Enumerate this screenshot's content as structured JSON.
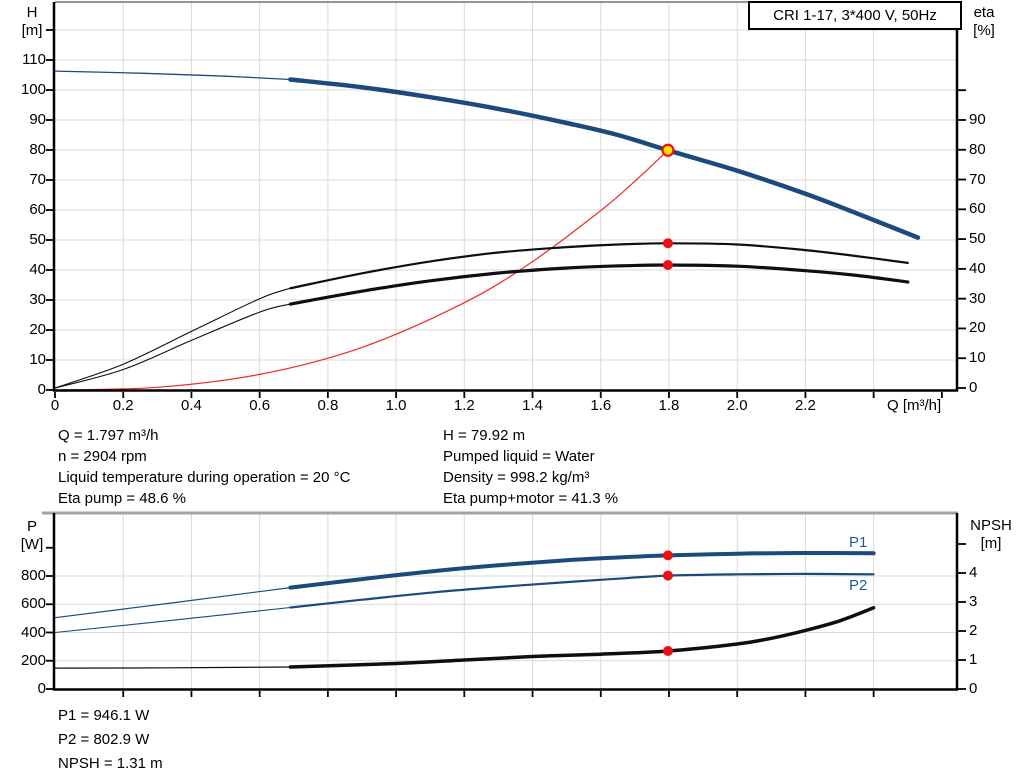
{
  "title_box": "CRI 1-17, 3*400 V, 50Hz",
  "colors": {
    "blue": "#1c4a7c",
    "black": "#0f0f0f",
    "red": "#ee2c22",
    "dot_red": "#ee1111",
    "duty_yellow": "#ffdf00",
    "grid": "#d9d9d9",
    "frame_gray": "#a3a3a3",
    "label_blue": "#1d5a9e"
  },
  "stats_top": {
    "left": [
      "Q = 1.797 m³/h",
      "n = 2904 rpm",
      "Liquid temperature during operation = 20 °C",
      "Eta pump = 48.6 %"
    ],
    "right": [
      "H = 79.92 m",
      "Pumped liquid = Water",
      "Density = 998.2 kg/m³",
      "Eta pump+motor = 41.3 %"
    ]
  },
  "stats_bottom": [
    "P1 = 946.1 W",
    "P2 = 802.9 W",
    "NPSH = 1.31 m"
  ],
  "chart_data": [
    {
      "type": "line",
      "name": "qh-eta-chart",
      "title": "CRI 1-17, 3*400 V, 50Hz",
      "x_axis": {
        "label": "Q [m³/h]",
        "tick_values": [
          0,
          0.2,
          0.4,
          0.6,
          0.8,
          1.0,
          1.2,
          1.4,
          1.6,
          1.8,
          2.0,
          2.2
        ],
        "tick_labels": [
          "0",
          "0.2",
          "0.4",
          "0.6",
          "0.8",
          "1.0",
          "1.2",
          "1.4",
          "1.6",
          "1.8",
          "2.0",
          "2.2"
        ],
        "unlabeled_ticks": [
          2.4,
          2.6
        ],
        "range": [
          0,
          2.645
        ]
      },
      "left_axis": {
        "title": "H",
        "unit": "[m]",
        "ticks": [
          0,
          10,
          20,
          30,
          40,
          50,
          60,
          70,
          80,
          90,
          100,
          110
        ],
        "unlabeled_ticks": [
          120
        ]
      },
      "right_axis": {
        "title": "eta",
        "unit": "[%]",
        "ticks": [
          0,
          10,
          20,
          30,
          40,
          50,
          60,
          70,
          80,
          90
        ],
        "unlabeled_ticks": [
          100
        ]
      },
      "series": [
        {
          "name": "pump-curve-preview",
          "axis": "H",
          "color": "blue",
          "width": 1.3,
          "points": [
            [
              0,
              106.3
            ],
            [
              0.25,
              105.6
            ],
            [
              0.5,
              104.6
            ],
            [
              0.69,
              103.5
            ]
          ]
        },
        {
          "name": "pump-curve",
          "axis": "H",
          "color": "blue",
          "width": 4.5,
          "points": [
            [
              0.69,
              103.5
            ],
            [
              0.9,
              100.9
            ],
            [
              1.1,
              97.6
            ],
            [
              1.3,
              93.7
            ],
            [
              1.5,
              89.0
            ],
            [
              1.65,
              85.0
            ],
            [
              1.797,
              79.9
            ],
            [
              2.0,
              73.1
            ],
            [
              2.2,
              65.4
            ],
            [
              2.35,
              58.9
            ],
            [
              2.53,
              50.8
            ]
          ]
        },
        {
          "name": "system-curve",
          "axis": "H",
          "color": "red",
          "width": 1.2,
          "points": [
            [
              0,
              0
            ],
            [
              0.3,
              0.9
            ],
            [
              0.6,
              5.2
            ],
            [
              0.9,
              14.2
            ],
            [
              1.2,
              29.1
            ],
            [
              1.4,
              42.8
            ],
            [
              1.6,
              59.8
            ],
            [
              1.7,
              69.6
            ],
            [
              1.797,
              79.9
            ]
          ]
        },
        {
          "name": "eta-pump-curve-preview",
          "axis": "eta",
          "color": "black",
          "width": 1.1,
          "points": [
            [
              0,
              0
            ],
            [
              0.2,
              8
            ],
            [
              0.4,
              19
            ],
            [
              0.6,
              30
            ],
            [
              0.69,
              33.5
            ]
          ]
        },
        {
          "name": "eta-pump-curve",
          "axis": "eta",
          "color": "black",
          "width": 2.2,
          "points": [
            [
              0.69,
              33.5
            ],
            [
              0.9,
              38.5
            ],
            [
              1.1,
              42.5
            ],
            [
              1.3,
              45.5
            ],
            [
              1.5,
              47.3
            ],
            [
              1.65,
              48.2
            ],
            [
              1.797,
              48.6
            ],
            [
              2.0,
              48.2
            ],
            [
              2.2,
              46.3
            ],
            [
              2.35,
              44.3
            ],
            [
              2.5,
              42.0
            ]
          ]
        },
        {
          "name": "eta-pump-motor-curve-preview",
          "axis": "eta",
          "color": "black",
          "width": 1.1,
          "points": [
            [
              0,
              0
            ],
            [
              0.2,
              6.2
            ],
            [
              0.4,
              16
            ],
            [
              0.6,
              25.5
            ],
            [
              0.69,
              28.2
            ]
          ]
        },
        {
          "name": "eta-pump-motor-curve",
          "axis": "eta",
          "color": "black",
          "width": 3.2,
          "points": [
            [
              0.69,
              28.2
            ],
            [
              0.9,
              32.5
            ],
            [
              1.1,
              36.0
            ],
            [
              1.3,
              38.6
            ],
            [
              1.5,
              40.3
            ],
            [
              1.65,
              41.0
            ],
            [
              1.797,
              41.3
            ],
            [
              2.0,
              40.9
            ],
            [
              2.2,
              39.4
            ],
            [
              2.35,
              37.8
            ],
            [
              2.5,
              35.6
            ]
          ]
        }
      ],
      "markers": [
        {
          "name": "duty-point",
          "style": "duty",
          "axis": "H",
          "q": 1.797,
          "v": 79.92
        },
        {
          "name": "eta-pump-point",
          "style": "dot",
          "axis": "eta",
          "q": 1.797,
          "v": 48.6
        },
        {
          "name": "eta-pump-motor-point",
          "style": "dot",
          "axis": "eta",
          "q": 1.797,
          "v": 41.3
        }
      ]
    },
    {
      "type": "line",
      "name": "power-npsh-chart",
      "x_axis": {
        "label": "",
        "tick_values": [],
        "tick_labels": [],
        "unlabeled_ticks": [
          0.2,
          0.4,
          0.6,
          0.8,
          1.0,
          1.2,
          1.4,
          1.6,
          1.8,
          2.0,
          2.2,
          2.4
        ],
        "range": [
          0,
          2.645
        ]
      },
      "left_axis": {
        "title": "P",
        "unit": "[W]",
        "ticks": [
          0,
          200,
          400,
          600,
          800
        ],
        "unlabeled_ticks": [
          1000
        ]
      },
      "right_axis": {
        "title": "NPSH",
        "unit": "[m]",
        "ticks": [
          0,
          1,
          2,
          3,
          4
        ],
        "unlabeled_ticks": [
          5
        ]
      },
      "series_labels": [
        "P1",
        "P2"
      ],
      "series": [
        {
          "name": "p1-curve-preview",
          "axis": "P",
          "color": "blue",
          "width": 1.2,
          "points": [
            [
              0,
              505
            ],
            [
              0.35,
              612
            ],
            [
              0.69,
              718
            ]
          ]
        },
        {
          "name": "p1-curve",
          "axis": "P",
          "color": "blue",
          "width": 4,
          "points": [
            [
              0.69,
              718
            ],
            [
              0.9,
              778
            ],
            [
              1.1,
              832
            ],
            [
              1.3,
              876
            ],
            [
              1.5,
              912
            ],
            [
              1.65,
              931
            ],
            [
              1.797,
              946.1
            ],
            [
              2.0,
              958
            ],
            [
              2.2,
              963
            ],
            [
              2.4,
              961
            ]
          ]
        },
        {
          "name": "p2-curve-preview",
          "axis": "P",
          "color": "blue",
          "width": 1.1,
          "points": [
            [
              0,
              400
            ],
            [
              0.35,
              488
            ],
            [
              0.69,
              577
            ]
          ]
        },
        {
          "name": "p2-curve",
          "axis": "P",
          "color": "blue",
          "width": 2.2,
          "points": [
            [
              0.69,
              577
            ],
            [
              0.9,
              632
            ],
            [
              1.1,
              682
            ],
            [
              1.3,
              722
            ],
            [
              1.5,
              757
            ],
            [
              1.65,
              781
            ],
            [
              1.797,
              802.9
            ],
            [
              2.0,
              812
            ],
            [
              2.2,
              815
            ],
            [
              2.4,
              812
            ]
          ]
        },
        {
          "name": "npsh-curve-preview",
          "axis": "N",
          "color": "black",
          "width": 1.2,
          "points": [
            [
              0,
              0.72
            ],
            [
              0.35,
              0.73
            ],
            [
              0.69,
              0.76
            ]
          ]
        },
        {
          "name": "npsh-curve",
          "axis": "N",
          "color": "black",
          "width": 3.5,
          "points": [
            [
              0.69,
              0.76
            ],
            [
              1.0,
              0.88
            ],
            [
              1.2,
              1.0
            ],
            [
              1.4,
              1.12
            ],
            [
              1.6,
              1.2
            ],
            [
              1.797,
              1.31
            ],
            [
              2.0,
              1.55
            ],
            [
              2.1,
              1.75
            ],
            [
              2.2,
              2.02
            ],
            [
              2.3,
              2.35
            ],
            [
              2.4,
              2.8
            ]
          ]
        }
      ],
      "markers": [
        {
          "name": "p1-point",
          "style": "dot",
          "axis": "P",
          "q": 1.797,
          "v": 946.1
        },
        {
          "name": "p2-point",
          "style": "dot",
          "axis": "P",
          "q": 1.797,
          "v": 802.9
        },
        {
          "name": "npsh-point",
          "style": "dot",
          "axis": "N",
          "q": 1.797,
          "v": 1.31
        }
      ]
    }
  ]
}
